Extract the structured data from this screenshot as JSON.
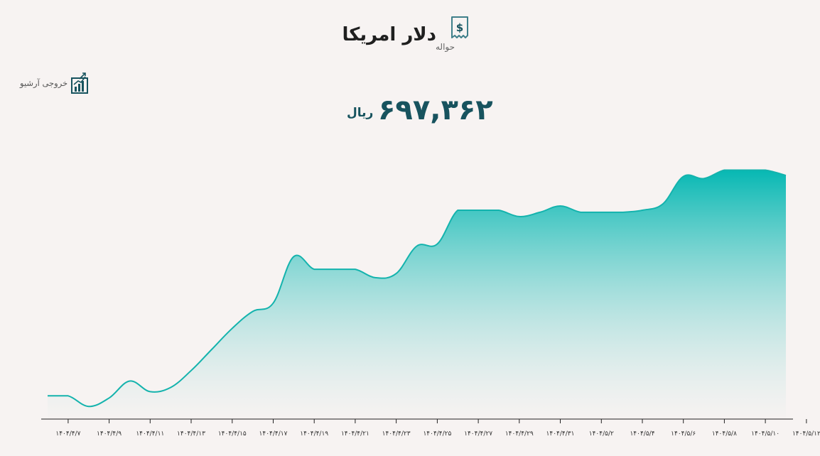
{
  "header": {
    "title": "دلار امریکا",
    "subtitle": "حواله",
    "icon": "dollar-receipt-icon"
  },
  "export": {
    "label": "خروجی آرشیو",
    "icon": "chart-export-icon"
  },
  "price": {
    "value": "۶۹۷,۳۶۲",
    "unit": "ریال"
  },
  "colors": {
    "accent": "#0fb7b1",
    "price_text": "#17535e",
    "line": "#14b3ad",
    "fill_top": "#06b8b3",
    "fill_bottom": "#f4f1f0"
  },
  "chart_data": {
    "type": "area",
    "xlabel": "",
    "ylabel": "",
    "grid": false,
    "tick_labels": [
      "۱۴۰۴/۴/۷",
      "۱۴۰۴/۴/۹",
      "۱۴۰۴/۴/۱۱",
      "۱۴۰۴/۴/۱۳",
      "۱۴۰۴/۴/۱۵",
      "۱۴۰۴/۴/۱۷",
      "۱۴۰۴/۴/۱۹",
      "۱۴۰۴/۴/۲۱",
      "۱۴۰۴/۴/۲۳",
      "۱۴۰۴/۴/۲۵",
      "۱۴۰۴/۴/۲۷",
      "۱۴۰۴/۴/۲۹",
      "۱۴۰۴/۴/۳۱",
      "۱۴۰۴/۵/۲",
      "۱۴۰۴/۵/۴",
      "۱۴۰۴/۵/۶",
      "۱۴۰۴/۵/۸",
      "۱۴۰۴/۵/۱۰",
      "۱۴۰۴/۵/۱۲"
    ],
    "tick_index_offset": 1,
    "values": [
      590000,
      590000,
      585000,
      589000,
      597000,
      592000,
      594000,
      602000,
      612000,
      622000,
      630000,
      634000,
      656000,
      650000,
      650000,
      650000,
      646000,
      648000,
      661000,
      662000,
      678000,
      678000,
      678000,
      675000,
      677000,
      680000,
      677000,
      677000,
      677000,
      678000,
      681000,
      694000,
      693000,
      697000,
      697000,
      697000,
      694500
    ],
    "ylim": [
      579000,
      712000
    ]
  }
}
